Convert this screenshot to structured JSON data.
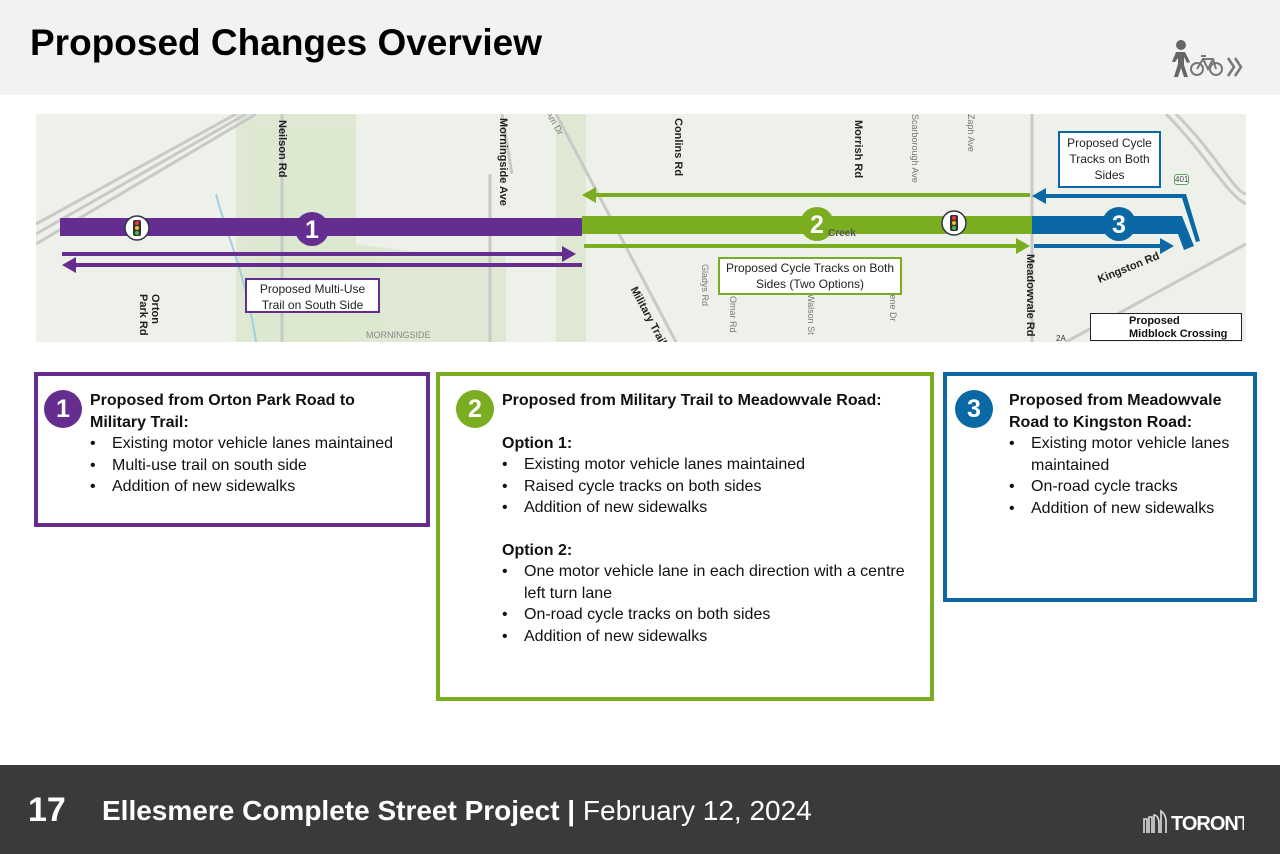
{
  "header": {
    "title": "Proposed Changes Overview",
    "icon": "pedestrian-bicycle-icon"
  },
  "map": {
    "roads": [
      "Neilson Rd",
      "Morningside Ave",
      "Conlins Rd",
      "Morrish Rd",
      "Meadowvale Rd",
      "Orton Park Rd",
      "Military Trail",
      "Kingston Rd"
    ],
    "minor_roads": [
      "Am Dr",
      "Scarborough Ave",
      "Zaph Ave",
      "Gladys Rd",
      "Walson St",
      "Deep Dene Dr",
      "Omar Rd"
    ],
    "place_labels": [
      "MORNINGSIDE",
      "Creek",
      "401",
      "2A"
    ],
    "segments": [
      {
        "number": "1",
        "color": "#662d91"
      },
      {
        "number": "2",
        "color": "#7aad1f"
      },
      {
        "number": "3",
        "color": "#0a69a5"
      }
    ],
    "labels": {
      "multi_use": "Proposed Multi-Use Trail on South Side",
      "cycle_two_options": "Proposed Cycle Tracks on Both Sides (Two Options)",
      "cycle_both": "Proposed Cycle Tracks on Both Sides"
    },
    "legend": {
      "icon": "traffic-signal-icon",
      "label": "Proposed Midblock Crossing"
    }
  },
  "sections": [
    {
      "number": "1",
      "color": "#662d91",
      "title": "Proposed from Orton Park Road to Military Trail:",
      "items": [
        "Existing motor vehicle lanes maintained",
        "Multi-use trail on south side",
        "Addition of new sidewalks"
      ]
    },
    {
      "number": "2",
      "color": "#7aad1f",
      "title": "Proposed from Military Trail to Meadowvale Road:",
      "options": [
        {
          "label": "Option 1:",
          "items": [
            "Existing motor vehicle lanes maintained",
            "Raised cycle tracks on both sides",
            "Addition of new sidewalks"
          ]
        },
        {
          "label": "Option 2:",
          "items": [
            "One motor vehicle lane in each direction with a centre left turn lane",
            "On-road cycle tracks on both sides",
            "Addition of new sidewalks"
          ]
        }
      ]
    },
    {
      "number": "3",
      "color": "#0a69a5",
      "title": "Proposed from Meadowvale Road to Kingston Road:",
      "items": [
        "Existing motor vehicle lanes maintained",
        "On-road cycle tracks",
        "Addition of new sidewalks"
      ]
    }
  ],
  "footer": {
    "page": "17",
    "project": "Ellesmere Complete Street Project",
    "separator": " | ",
    "date": "February 12, 2024",
    "logo": "TORONTO"
  }
}
